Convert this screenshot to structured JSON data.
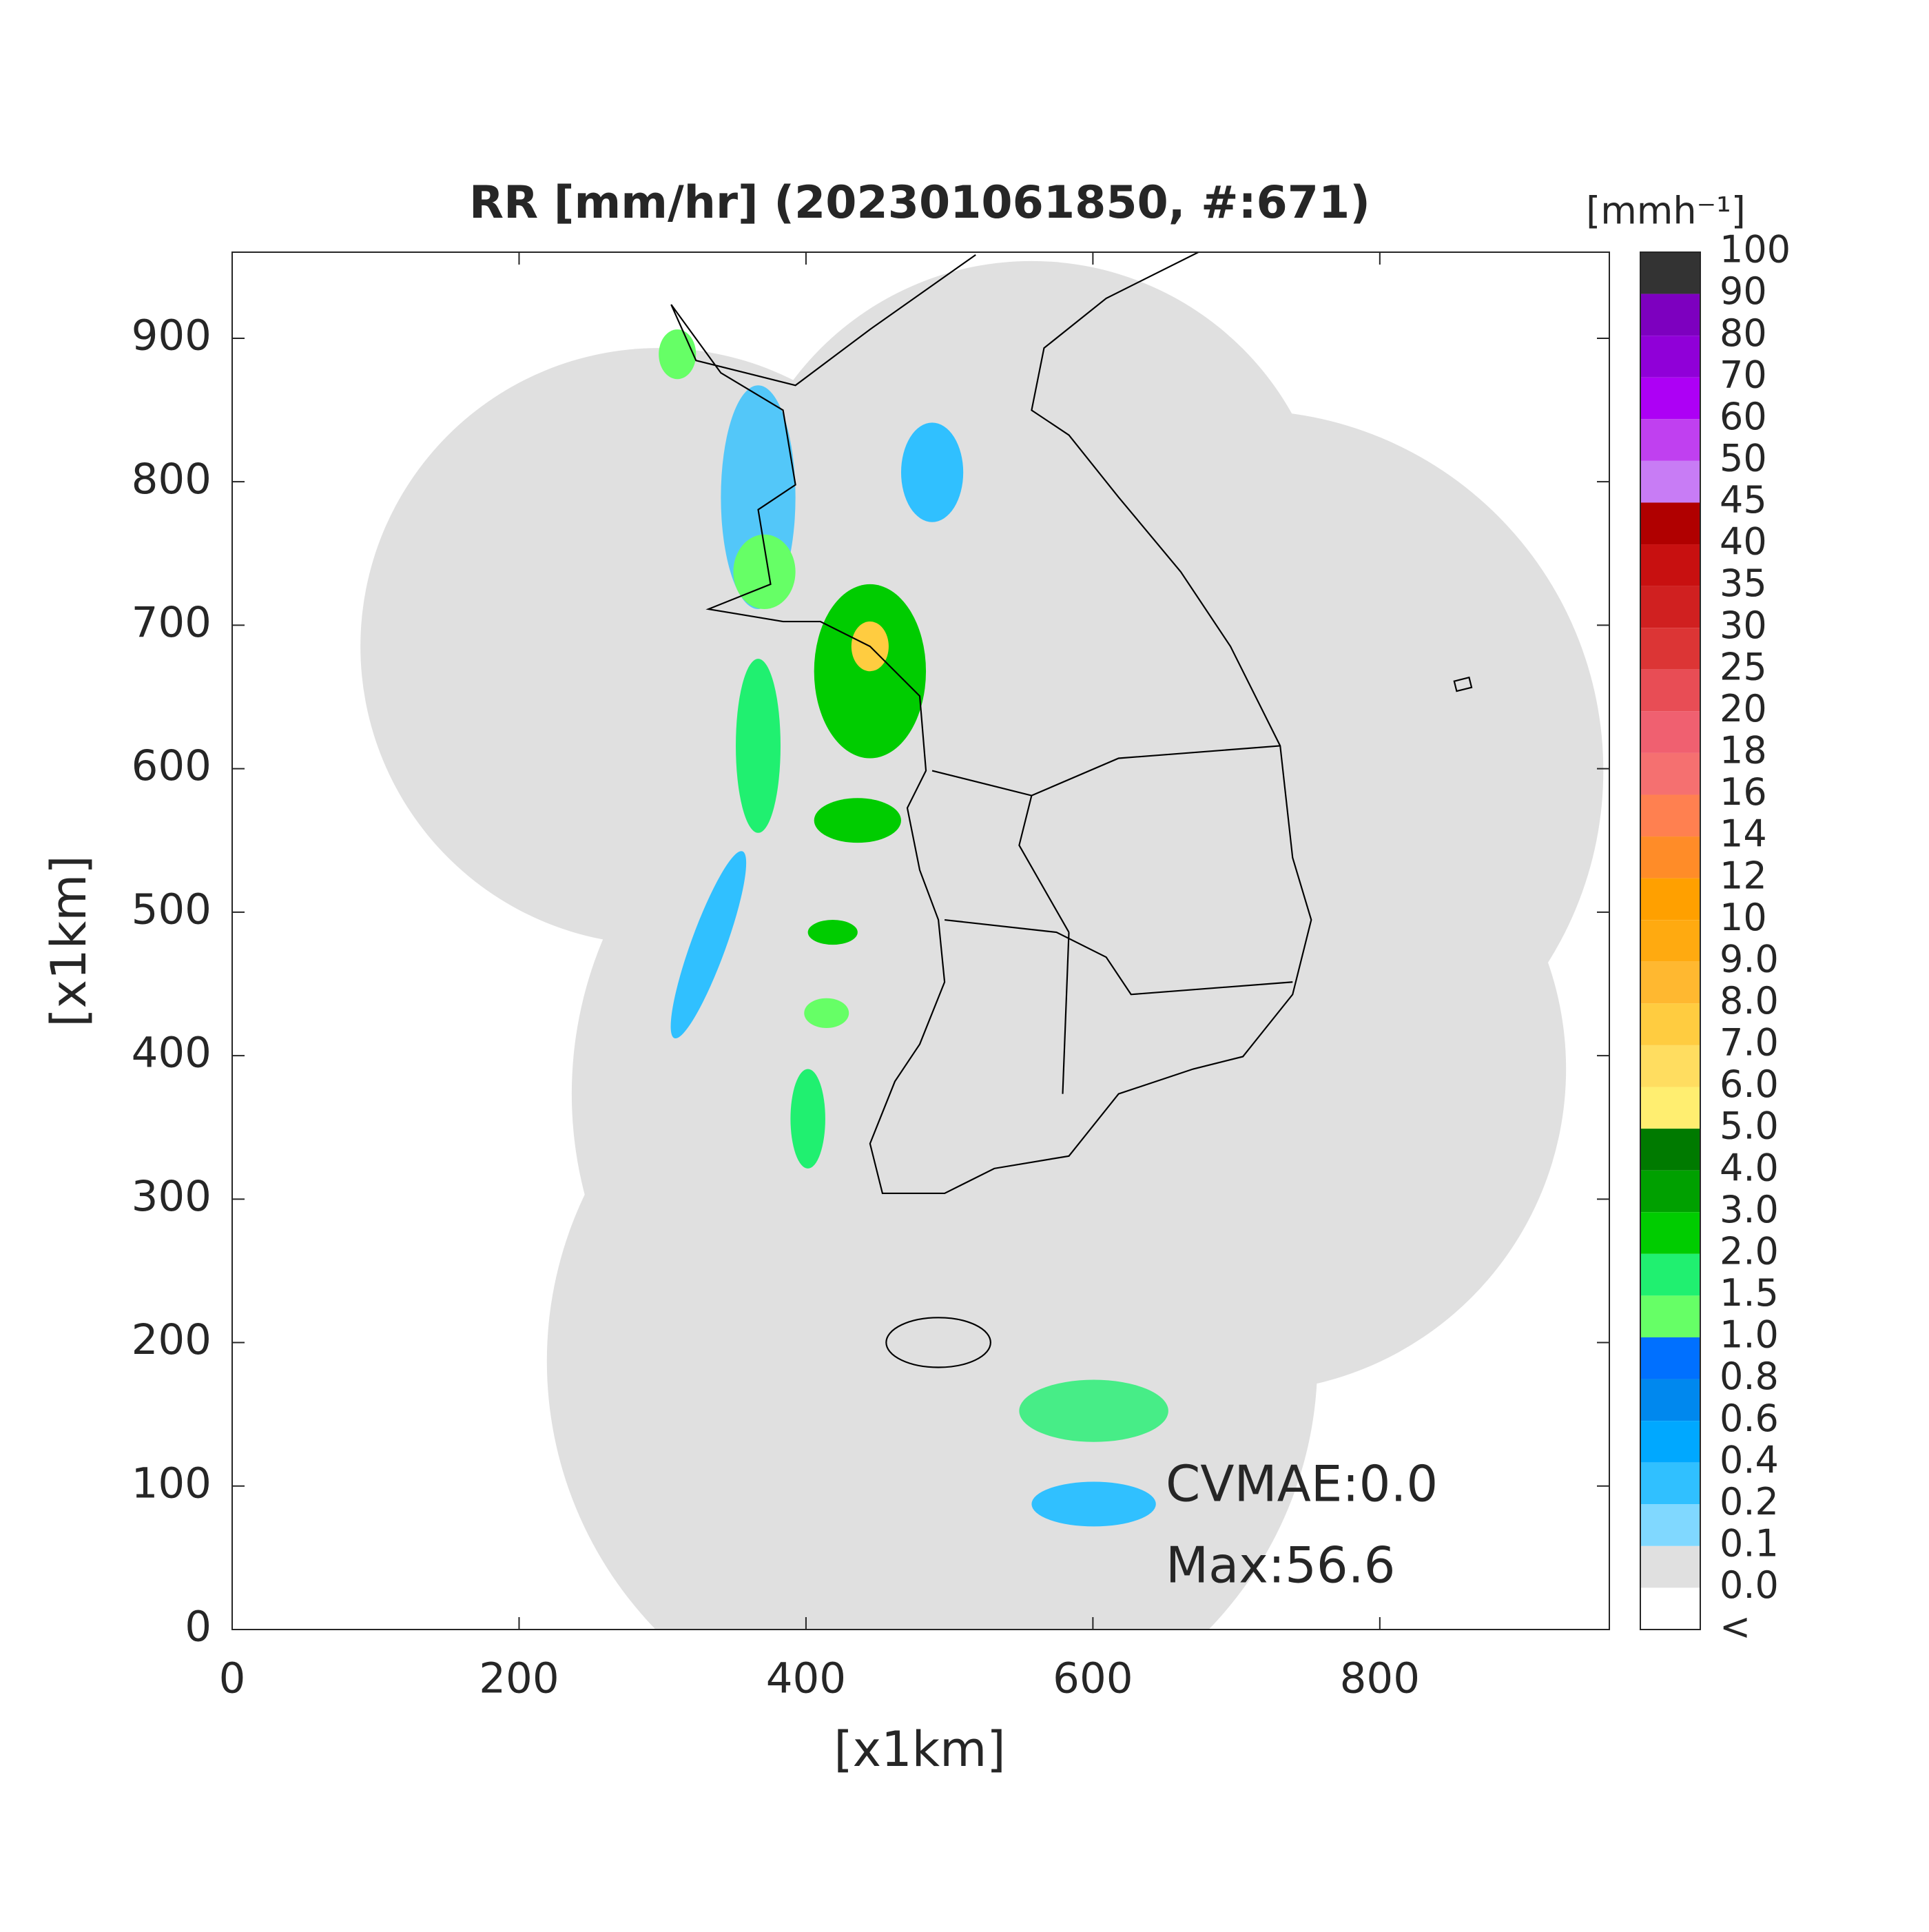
{
  "chart_data": {
    "type": "map",
    "title": "RR [mm/hr] (202301061850, #:671)",
    "xlabel": "[x1km]",
    "ylabel": "[x1km]",
    "xlim": [
      0,
      960
    ],
    "ylim": [
      0,
      960
    ],
    "xticks": [
      0,
      200,
      400,
      600,
      800
    ],
    "yticks": [
      0,
      100,
      200,
      300,
      400,
      500,
      600,
      700,
      800,
      900
    ],
    "colorbar": {
      "title": "[mmh⁻¹]",
      "labels": [
        "100",
        "90",
        "80",
        "70",
        "60",
        "50",
        "45",
        "40",
        "35",
        "30",
        "25",
        "20",
        "18",
        "16",
        "14",
        "12",
        "10",
        "9.0",
        "8.0",
        "7.0",
        "6.0",
        "5.0",
        "4.0",
        "3.0",
        "2.0",
        "1.5",
        "1.0",
        "0.8",
        "0.6",
        "0.4",
        "0.2",
        "0.1",
        "0.0",
        "<"
      ],
      "colors": [
        "#333333",
        "#7d00bf",
        "#9000d8",
        "#ad00f5",
        "#c040f0",
        "#c87cf5",
        "#b00000",
        "#c81010",
        "#d02020",
        "#dc3535",
        "#e84d55",
        "#f06070",
        "#f57070",
        "#ff8050",
        "#ff8c28",
        "#ffa000",
        "#ffaa10",
        "#ffb830",
        "#ffcc40",
        "#ffdd60",
        "#ffee70",
        "#007a00",
        "#00a000",
        "#00cc00",
        "#20f070",
        "#66ff66",
        "#0070ff",
        "#0088ee",
        "#00a8ff",
        "#30c0ff",
        "#80d8ff",
        "#e0e0e0",
        "#ffffff"
      ]
    },
    "annotations": [
      "CVMAE:0.0",
      "Max:56.6"
    ]
  }
}
